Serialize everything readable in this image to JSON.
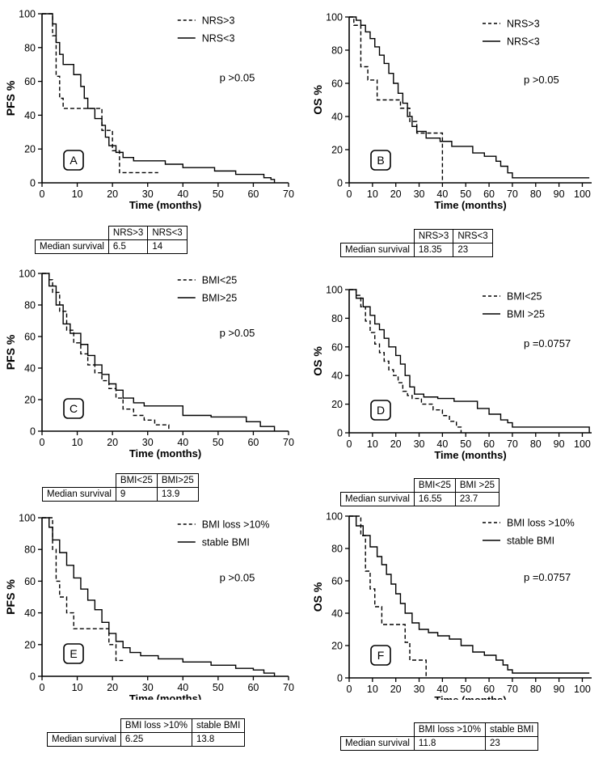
{
  "chart_data": [
    {
      "type": "line",
      "panel": "A",
      "ylabel": "PFS %",
      "xlabel": "Time (months)",
      "xlim": [
        0,
        70
      ],
      "ylim": [
        0,
        100
      ],
      "xticks": [
        0,
        10,
        20,
        30,
        40,
        50,
        60,
        70
      ],
      "yticks": [
        0,
        20,
        40,
        60,
        80,
        100
      ],
      "pvalue": "p >0.05",
      "legend_position": "top-right",
      "series": [
        {
          "name": "NRS>3",
          "style": "dashed",
          "x": [
            0,
            3,
            4,
            5,
            6,
            15,
            17,
            20,
            22,
            27,
            33
          ],
          "y": [
            100,
            87,
            63,
            50,
            44,
            44,
            31,
            19,
            6,
            6,
            6
          ]
        },
        {
          "name": "NRS<3",
          "style": "solid",
          "x": [
            0,
            3,
            4,
            5,
            6,
            9,
            11,
            12,
            13,
            15,
            17,
            18,
            19,
            21,
            23,
            26,
            29,
            35,
            40,
            49,
            55,
            63,
            65,
            66
          ],
          "y": [
            100,
            94,
            83,
            76,
            70,
            64,
            57,
            50,
            44,
            38,
            34,
            27,
            22,
            18,
            15,
            13,
            13,
            11,
            9,
            7,
            5,
            3,
            2,
            0
          ]
        }
      ],
      "table": {
        "header": [
          "NRS>3",
          "NRS<3"
        ],
        "row_label": "Median survival",
        "values": [
          "6.5",
          "14"
        ]
      }
    },
    {
      "type": "line",
      "panel": "B",
      "ylabel": "OS %",
      "xlabel": "Time (months)",
      "xlim": [
        0,
        104
      ],
      "ylim": [
        0,
        100
      ],
      "xticks": [
        0,
        10,
        20,
        30,
        40,
        50,
        60,
        70,
        80,
        90,
        100
      ],
      "yticks": [
        0,
        20,
        40,
        60,
        80,
        100
      ],
      "pvalue": "p >0.05",
      "legend_position": "top-right",
      "series": [
        {
          "name": "NRS>3",
          "style": "dashed",
          "x": [
            0,
            2,
            5,
            8,
            12,
            18,
            22,
            26,
            29,
            38,
            40
          ],
          "y": [
            100,
            95,
            70,
            62,
            50,
            50,
            45,
            37,
            30,
            30,
            0
          ]
        },
        {
          "name": "NRS<3",
          "style": "solid",
          "x": [
            0,
            3,
            5,
            7,
            9,
            11,
            13,
            15,
            17,
            19,
            21,
            23,
            25,
            27,
            29,
            33,
            39,
            44,
            53,
            58,
            61,
            63,
            65,
            68,
            70,
            103
          ],
          "y": [
            100,
            98,
            95,
            91,
            87,
            82,
            77,
            72,
            66,
            60,
            54,
            48,
            40,
            34,
            31,
            27,
            25,
            22,
            18,
            16,
            16,
            13,
            10,
            6,
            3,
            3
          ]
        }
      ],
      "table": {
        "header": [
          "NRS>3",
          "NRS<3"
        ],
        "row_label": "Median survival",
        "values": [
          "18.35",
          "23"
        ]
      }
    },
    {
      "type": "line",
      "panel": "C",
      "ylabel": "PFS %",
      "xlabel": "Time (months)",
      "xlim": [
        0,
        70
      ],
      "ylim": [
        0,
        100
      ],
      "xticks": [
        0,
        10,
        20,
        30,
        40,
        50,
        60,
        70
      ],
      "yticks": [
        0,
        20,
        40,
        60,
        80,
        100
      ],
      "pvalue": "p >0.05",
      "legend_position": "top-right",
      "series": [
        {
          "name": "BMI<25",
          "style": "dashed",
          "x": [
            0,
            2,
            3,
            5,
            7,
            9,
            11,
            13,
            15,
            17,
            19,
            21,
            23,
            26,
            29,
            32,
            36
          ],
          "y": [
            100,
            96,
            88,
            76,
            64,
            56,
            49,
            42,
            37,
            32,
            27,
            21,
            14,
            10,
            7,
            4,
            0
          ]
        },
        {
          "name": "BMI>25",
          "style": "solid",
          "x": [
            0,
            2,
            4,
            6,
            8,
            11,
            13,
            15,
            17,
            19,
            21,
            23,
            26,
            29,
            35,
            40,
            48,
            58,
            62,
            66
          ],
          "y": [
            100,
            92,
            80,
            68,
            62,
            55,
            48,
            42,
            36,
            30,
            26,
            21,
            18,
            16,
            16,
            10,
            9,
            6,
            3,
            0
          ]
        }
      ],
      "table": {
        "header": [
          "BMI<25",
          "BMI>25"
        ],
        "row_label": "Median survival",
        "values": [
          "9",
          "13.9"
        ]
      }
    },
    {
      "type": "line",
      "panel": "D",
      "ylabel": "OS %",
      "xlabel": "Time (months)",
      "xlim": [
        0,
        104
      ],
      "ylim": [
        0,
        100
      ],
      "xticks": [
        0,
        10,
        20,
        30,
        40,
        50,
        60,
        70,
        80,
        90,
        100
      ],
      "yticks": [
        0,
        20,
        40,
        60,
        80,
        100
      ],
      "pvalue": "p =0.0757",
      "legend_position": "top-right",
      "series": [
        {
          "name": "BMI<25",
          "style": "dashed",
          "x": [
            0,
            3,
            5,
            7,
            9,
            11,
            13,
            15,
            17,
            19,
            21,
            23,
            25,
            27,
            31,
            36,
            40,
            43,
            46,
            48
          ],
          "y": [
            100,
            96,
            88,
            78,
            70,
            62,
            56,
            50,
            44,
            40,
            35,
            29,
            26,
            24,
            20,
            16,
            12,
            8,
            4,
            0
          ]
        },
        {
          "name": "BMI >25",
          "style": "solid",
          "x": [
            0,
            3,
            6,
            9,
            11,
            13,
            15,
            17,
            20,
            22,
            24,
            26,
            28,
            32,
            38,
            45,
            55,
            60,
            65,
            68,
            70,
            103
          ],
          "y": [
            100,
            94,
            88,
            82,
            76,
            72,
            66,
            60,
            54,
            48,
            40,
            32,
            27,
            25,
            24,
            22,
            17,
            13,
            9,
            7,
            4,
            0
          ]
        }
      ],
      "table": {
        "header": [
          "BMI<25",
          "BMI >25"
        ],
        "row_label": "Median survival",
        "values": [
          "16.55",
          "23.7"
        ]
      }
    },
    {
      "type": "line",
      "panel": "E",
      "ylabel": "PFS %",
      "xlabel": "Time (months)",
      "xlim": [
        0,
        70
      ],
      "ylim": [
        0,
        100
      ],
      "xticks": [
        0,
        10,
        20,
        30,
        40,
        50,
        60,
        70
      ],
      "yticks": [
        0,
        20,
        40,
        60,
        80,
        100
      ],
      "pvalue": "p >0.05",
      "legend_position": "top-right",
      "series": [
        {
          "name": "BMI loss >10%",
          "style": "dashed",
          "x": [
            0,
            3,
            4,
            5,
            7,
            9,
            16,
            19,
            21,
            23
          ],
          "y": [
            100,
            80,
            60,
            50,
            40,
            30,
            30,
            20,
            10,
            10
          ]
        },
        {
          "name": "stable BMI",
          "style": "solid",
          "x": [
            0,
            2,
            3,
            5,
            7,
            9,
            11,
            13,
            15,
            17,
            19,
            21,
            23,
            25,
            28,
            33,
            40,
            48,
            55,
            60,
            63,
            66
          ],
          "y": [
            100,
            94,
            86,
            78,
            70,
            62,
            55,
            48,
            42,
            34,
            27,
            22,
            18,
            15,
            13,
            11,
            9,
            7,
            5,
            4,
            2,
            0
          ]
        }
      ],
      "table": {
        "header": [
          "BMI loss >10%",
          "stable BMI"
        ],
        "row_label": "Median survival",
        "values": [
          "6.25",
          "13.8"
        ]
      }
    },
    {
      "type": "line",
      "panel": "F",
      "ylabel": "OS %",
      "xlabel": "Time (months)",
      "xlim": [
        0,
        104
      ],
      "ylim": [
        0,
        100
      ],
      "xticks": [
        0,
        10,
        20,
        30,
        40,
        50,
        60,
        70,
        80,
        90,
        100
      ],
      "yticks": [
        0,
        20,
        40,
        60,
        80,
        100
      ],
      "pvalue": "p =0.0757",
      "legend_position": "top-right",
      "series": [
        {
          "name": "BMI loss >10%",
          "style": "dashed",
          "x": [
            0,
            5,
            7,
            9,
            11,
            14,
            20,
            24,
            26,
            30,
            33
          ],
          "y": [
            100,
            88,
            66,
            55,
            44,
            33,
            33,
            22,
            11,
            11,
            0
          ]
        },
        {
          "name": "stable BMI",
          "style": "solid",
          "x": [
            0,
            3,
            6,
            9,
            12,
            14,
            16,
            18,
            20,
            22,
            24,
            27,
            30,
            34,
            38,
            43,
            48,
            53,
            58,
            63,
            66,
            68,
            70,
            103
          ],
          "y": [
            100,
            94,
            88,
            81,
            75,
            70,
            64,
            58,
            52,
            46,
            40,
            34,
            30,
            28,
            26,
            24,
            20,
            16,
            14,
            11,
            8,
            5,
            3,
            3
          ]
        }
      ],
      "table": {
        "header": [
          "BMI loss >10%",
          "stable BMI"
        ],
        "row_label": "Median survival",
        "values": [
          "11.8",
          "23"
        ]
      }
    }
  ]
}
